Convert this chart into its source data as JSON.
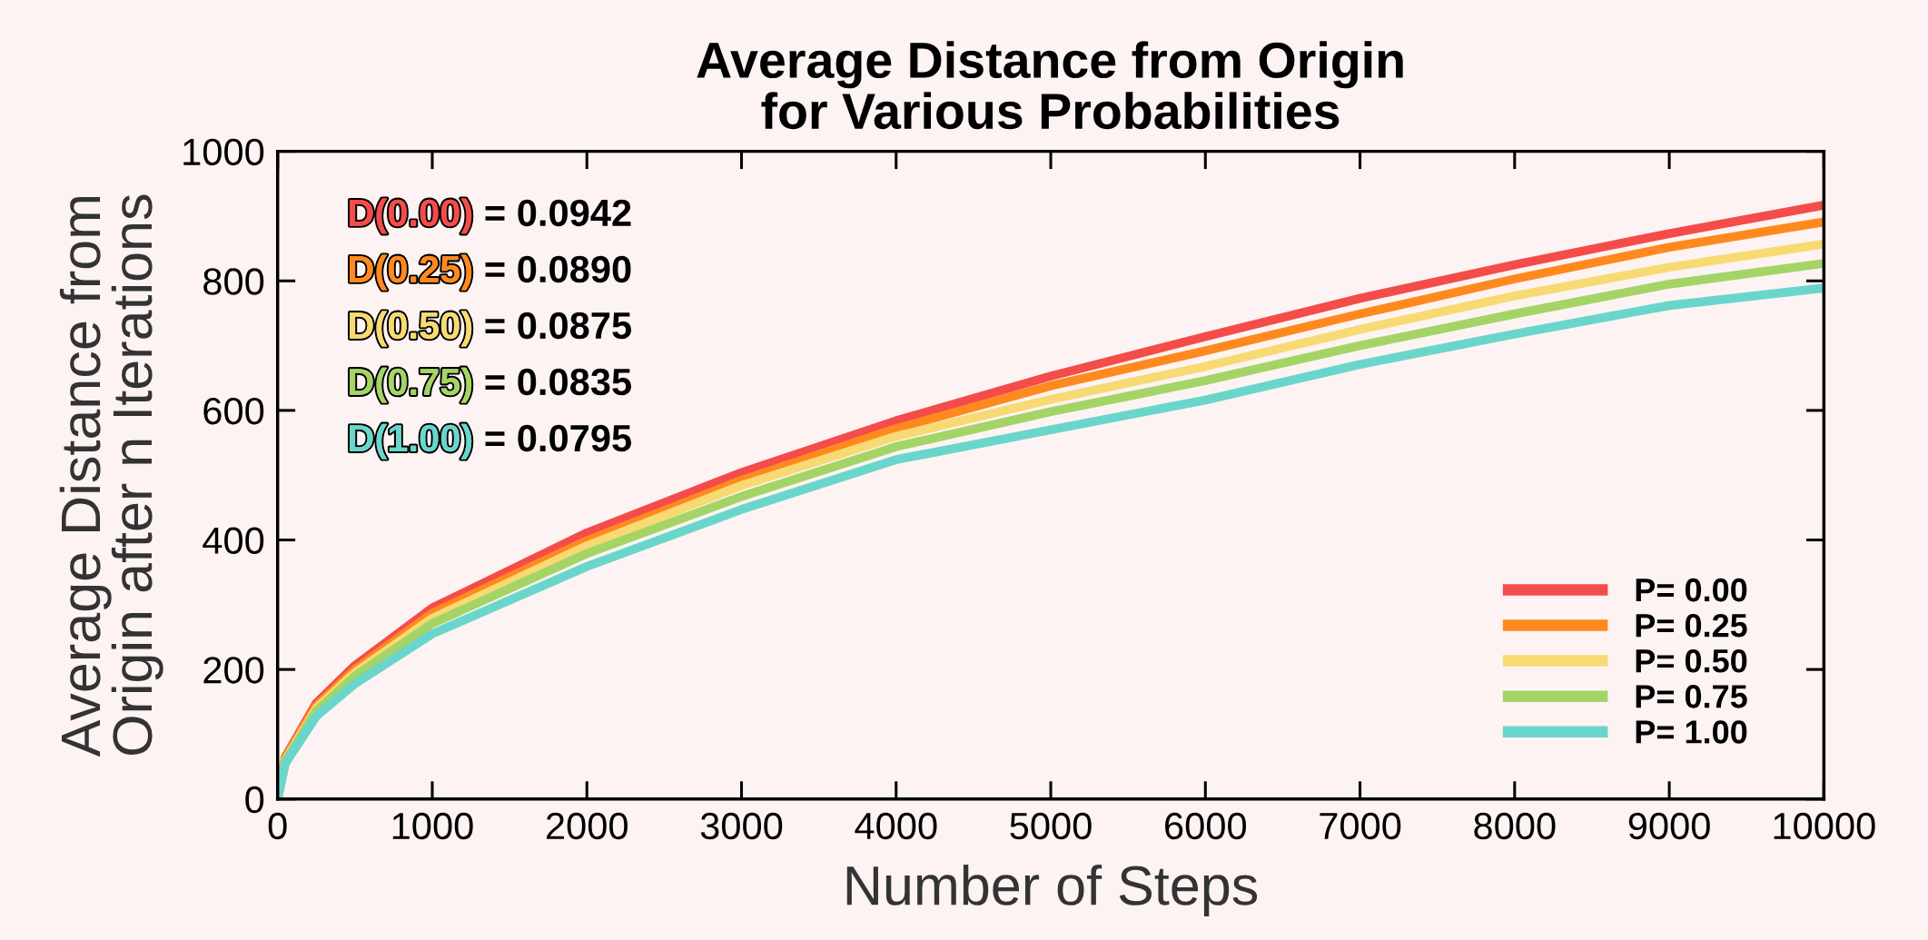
{
  "chart_data": {
    "type": "line",
    "title": "Average Distance from Origin\nfor Various Probabilities",
    "xlabel": "Number of Steps",
    "ylabel": "Average Distance from\nOrigin after n Iterations",
    "x": [
      0,
      50,
      250,
      500,
      1000,
      2000,
      3000,
      4000,
      5000,
      6000,
      7000,
      8000,
      9000,
      10000
    ],
    "series": [
      {
        "name": "P= 0.00",
        "color": "#f44c4a",
        "values": [
          0,
          65,
          148,
          206,
          295,
          411,
          504,
          584,
          653,
          714,
          773,
          825,
          873,
          917
        ]
      },
      {
        "name": "P= 0.25",
        "color": "#fe8a1f",
        "values": [
          0,
          63,
          144,
          200,
          287,
          399,
          492,
          572,
          638,
          692,
          749,
          803,
          852,
          891
        ]
      },
      {
        "name": "P= 0.50",
        "color": "#f8da74",
        "values": [
          0,
          60,
          140,
          195,
          279,
          391,
          484,
          560,
          617,
          668,
          725,
          777,
          821,
          857
        ]
      },
      {
        "name": "P= 0.75",
        "color": "#a4d466",
        "values": [
          0,
          58,
          136,
          190,
          271,
          379,
          467,
          544,
          598,
          646,
          700,
          749,
          795,
          827
        ]
      },
      {
        "name": "P= 1.00",
        "color": "#6ad6cb",
        "values": [
          0,
          55,
          128,
          178,
          255,
          359,
          447,
          524,
          570,
          616,
          671,
          718,
          762,
          789
        ]
      }
    ],
    "annotations": [
      "D(0.00) = 0.0942",
      "D(0.25) = 0.0890",
      "D(0.50) = 0.0875",
      "D(0.75) = 0.0835",
      "D(1.00) = 0.0795"
    ],
    "xlim": [
      0,
      10000
    ],
    "xticks": [
      0,
      1000,
      2000,
      3000,
      4000,
      5000,
      6000,
      7000,
      8000,
      9000,
      10000
    ],
    "ylim": [
      0,
      1000
    ],
    "yticks": [
      0,
      200,
      400,
      600,
      800,
      1000
    ],
    "grid": false,
    "legend": "lower right",
    "line_style": "solid",
    "marker": "none"
  }
}
